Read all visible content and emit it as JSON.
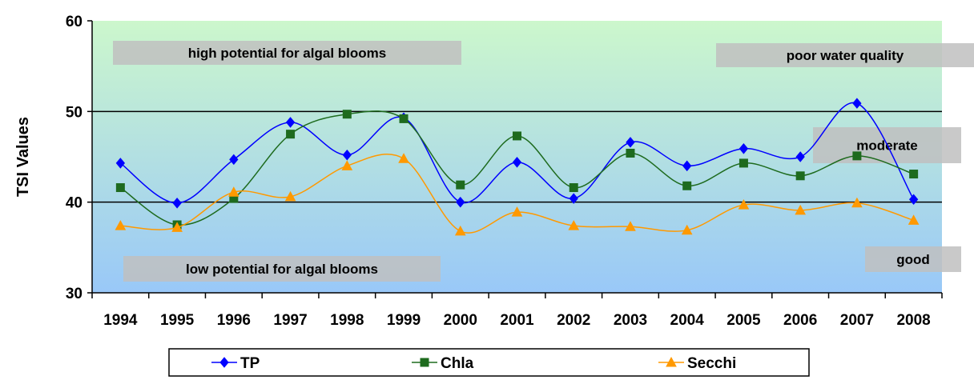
{
  "chart_data": {
    "type": "line",
    "title": "",
    "xlabel": "",
    "ylabel": "TSI Values",
    "ylim": [
      30,
      60
    ],
    "yticks": [
      30,
      40,
      50,
      60
    ],
    "grid": "horizontal lines at 40 and 50",
    "categories": [
      "1994",
      "1995",
      "1996",
      "1997",
      "1998",
      "1999",
      "2000",
      "2001",
      "2002",
      "2003",
      "2004",
      "2005",
      "2006",
      "2007",
      "2008"
    ],
    "series": [
      {
        "name": "TP",
        "color": "#0000ff",
        "marker": "diamond",
        "values": [
          44.3,
          39.9,
          44.7,
          48.8,
          45.2,
          49.3,
          40.0,
          44.4,
          40.4,
          46.6,
          44.0,
          45.9,
          45.0,
          50.9,
          40.3
        ]
      },
      {
        "name": "Chla",
        "color": "#1e6b1e",
        "marker": "square",
        "values": [
          41.6,
          37.5,
          40.4,
          47.5,
          49.7,
          49.2,
          41.9,
          47.3,
          41.6,
          45.4,
          41.8,
          44.3,
          42.9,
          45.1,
          43.1
        ]
      },
      {
        "name": "Secchi",
        "color": "#ff9900",
        "marker": "triangle",
        "values": [
          37.4,
          37.2,
          41.1,
          40.6,
          44.0,
          44.8,
          36.8,
          38.9,
          37.4,
          37.3,
          36.9,
          39.7,
          39.1,
          39.9,
          38.0
        ]
      }
    ],
    "annotations": [
      {
        "id": "high",
        "text": "high potential for algal blooms"
      },
      {
        "id": "poor",
        "text": "poor water quality"
      },
      {
        "id": "moderate",
        "text": "moderate"
      },
      {
        "id": "low",
        "text": "low potential for algal blooms"
      },
      {
        "id": "good",
        "text": "good"
      }
    ],
    "legend_position": "bottom",
    "colors": {
      "band_top": "#ccf7cc",
      "band_bottom": "#99c8f8",
      "note_box": "#bfbfbf"
    }
  }
}
